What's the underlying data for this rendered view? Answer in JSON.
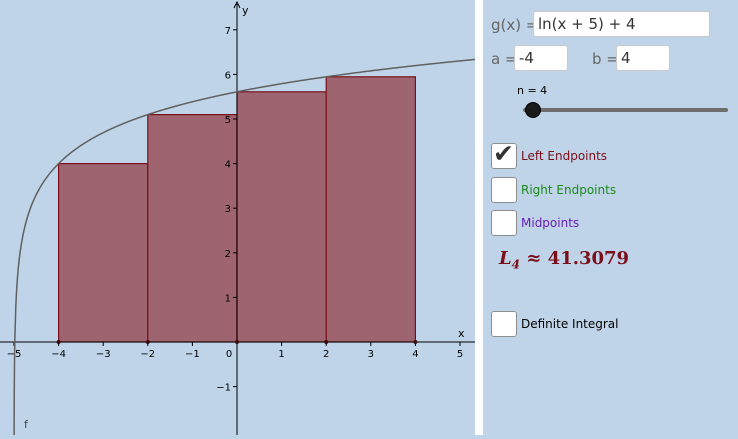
{
  "function_input": {
    "label": "g(x) =",
    "value": "ln(x + 5) + 4"
  },
  "a_input": {
    "label": "a =",
    "value": "-4"
  },
  "b_input": {
    "label": "b =",
    "value": "4"
  },
  "slider": {
    "label": "n = 4",
    "value": 4,
    "min": 1,
    "max": 100
  },
  "checkboxes": [
    {
      "label": "Left Endpoints",
      "checked": true,
      "color": "#7a0f1a"
    },
    {
      "label": "Right Endpoints",
      "checked": false,
      "color": "#1a8a1a"
    },
    {
      "label": "Midpoints",
      "checked": false,
      "color": "#6a1fb0"
    }
  ],
  "definite_integral": {
    "label": "Definite Integral",
    "checked": false
  },
  "result": {
    "symbol": "L",
    "subscript": "4",
    "approx": "≈",
    "value": "41.3079",
    "color": "#7a0f1a"
  },
  "graph": {
    "x_axis_label": "x",
    "y_axis_label": "y",
    "curve_label": "f",
    "x_ticks": [
      "−5",
      "−4",
      "−3",
      "−2",
      "−1",
      "0",
      "1",
      "2",
      "3",
      "4",
      "5"
    ],
    "y_ticks": [
      "7",
      "6",
      "5",
      "4",
      "3",
      "2",
      "1",
      "−1"
    ],
    "rect_color": "#9e6570",
    "rect_stroke": "#7a0f1a",
    "curve_color": "#606060"
  },
  "chart_data": {
    "type": "area",
    "function": "ln(x + 5) + 4",
    "xlim": [
      -5.3,
      5.3
    ],
    "ylim": [
      -2,
      7.5
    ],
    "rectangles": [
      {
        "x_left": -4,
        "x_right": -2,
        "height": 4.0
      },
      {
        "x_left": -2,
        "x_right": 0,
        "height": 5.0986
      },
      {
        "x_left": 0,
        "x_right": 2,
        "height": 5.6094
      },
      {
        "x_left": 2,
        "x_right": 4,
        "height": 5.9459
      }
    ]
  }
}
